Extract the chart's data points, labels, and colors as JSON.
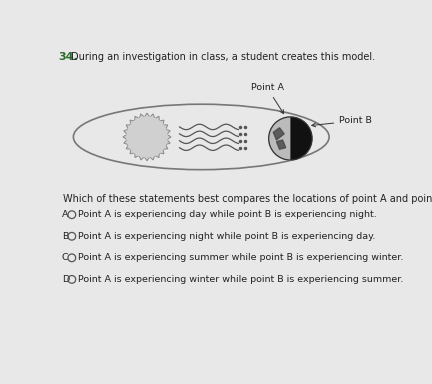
{
  "bg_color": "#e8e8e8",
  "paper_color": "#e0e0e0",
  "question_number": "34.",
  "intro_text": "During an investigation in class, a student creates this model.",
  "point_a_label": "Point A",
  "point_b_label": "Point B",
  "question_text": "Which of these statements best compares the locations of point A and point B?",
  "options": [
    "Point A is experiencing day while point B is experiencing night.",
    "Point A is experiencing night while point B is experiencing day.",
    "Point A is experiencing summer while point B is experiencing winter.",
    "Point A is experiencing winter while point B is experiencing summer."
  ],
  "option_letters": [
    "A",
    "B",
    "C",
    "D"
  ],
  "title_fontsize": 7.0,
  "option_fontsize": 6.8,
  "question_fontsize": 7.0,
  "sun_color": "#d0d0d0",
  "ellipse_color": "#777777",
  "wave_color": "#555555",
  "earth_light": "#bbbbbb",
  "earth_dark": "#111111",
  "text_color": "#222222",
  "qnum_color": "#2d6a2d"
}
